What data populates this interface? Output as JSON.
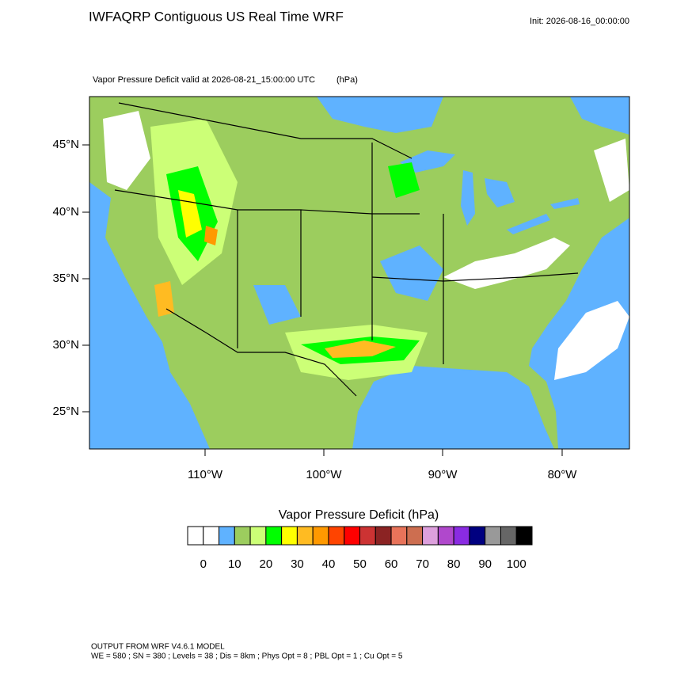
{
  "header": {
    "title": "IWFAQRP Contiguous US Real Time WRF",
    "init": "Init: 2026-08-16_00:00:00"
  },
  "map": {
    "subtitle": "Vapor Pressure Deficit valid at 2026-08-21_15:00:00 UTC",
    "units": "(hPa)",
    "lat_labels": [
      "45°N",
      "40°N",
      "35°N",
      "30°N",
      "25°N"
    ],
    "lon_labels": [
      "110°W",
      "100°W",
      "90°W",
      "80°W"
    ]
  },
  "colorbar": {
    "title": "Vapor Pressure Deficit  (hPa)",
    "colors": [
      "#ffffff",
      "#ffffff",
      "#5fb2ff",
      "#9ccd5e",
      "#ccff77",
      "#00ff00",
      "#ffff00",
      "#ffbb22",
      "#ff9900",
      "#ff4400",
      "#ff0000",
      "#cc3333",
      "#8b2323",
      "#e8735a",
      "#cd6e50",
      "#dda0dd",
      "#b048cc",
      "#8a2be2",
      "#000080",
      "#999999",
      "#666666",
      "#000000"
    ],
    "ticks": [
      0,
      10,
      20,
      30,
      40,
      50,
      60,
      70,
      80,
      90,
      100
    ]
  },
  "footer": {
    "line1": "OUTPUT FROM WRF V4.6.1 MODEL",
    "line2": "WE = 580 ; SN = 380 ; Levels = 38 ; Dis = 8km ; Phys Opt = 8 ; PBL Opt = 1 ; Cu Opt = 5"
  }
}
